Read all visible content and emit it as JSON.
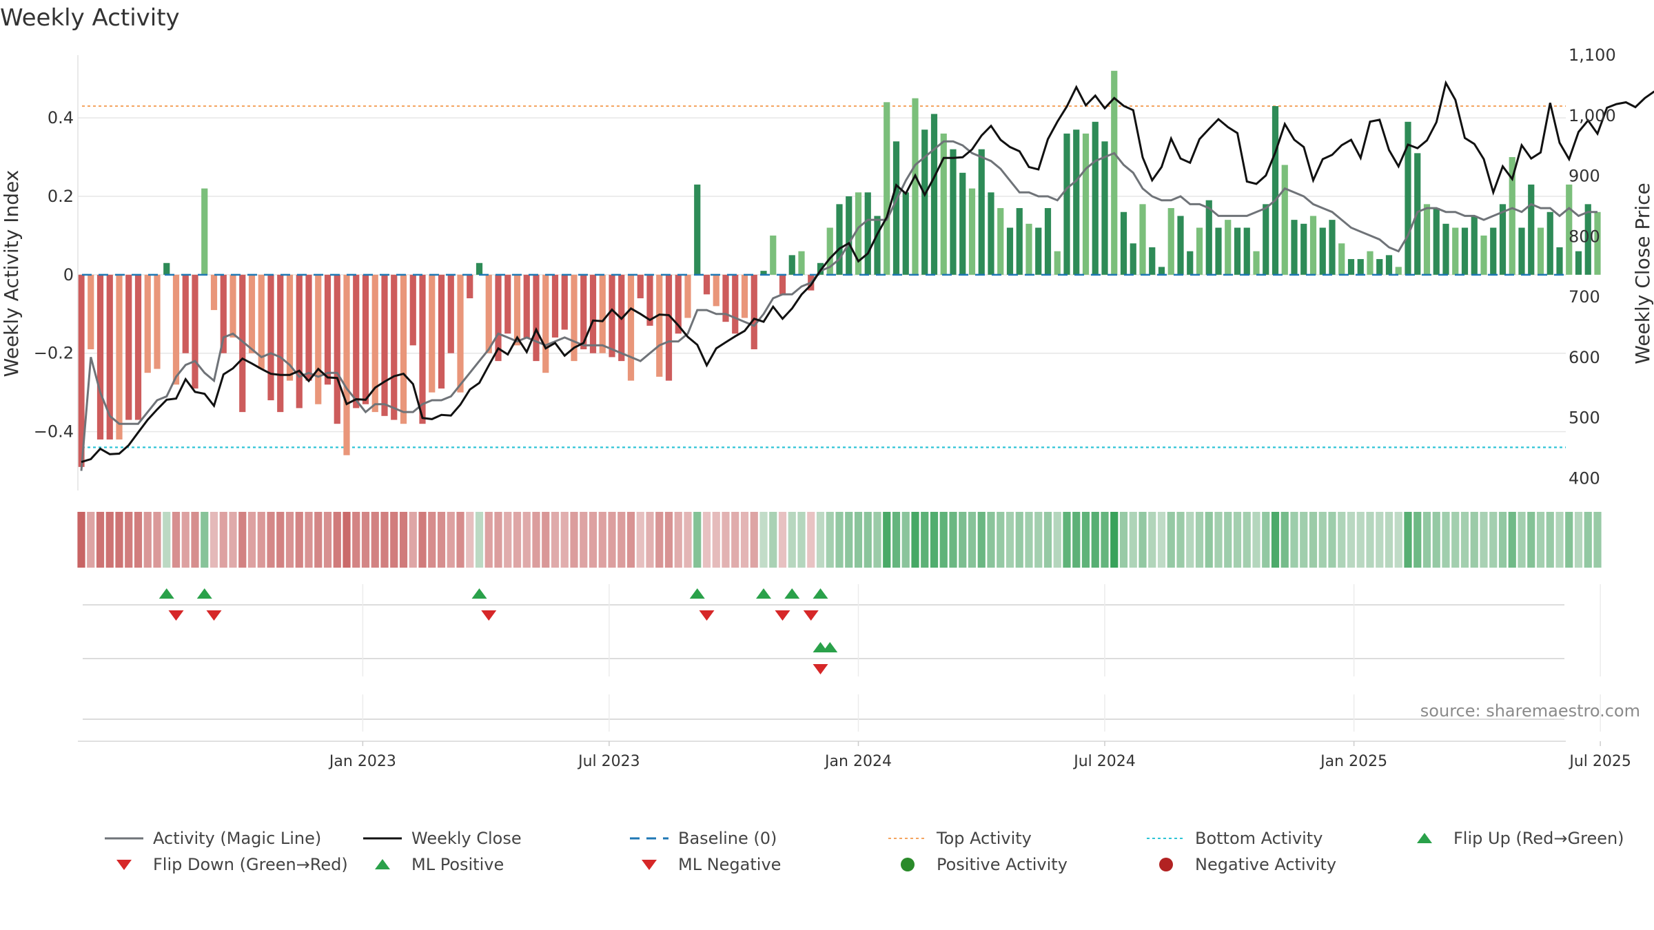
{
  "title": "Weekly Activity",
  "source_note": "source: sharemaestro.com",
  "chart_data": {
    "type": "bar",
    "title": "Weekly Activity",
    "ylabel": "Weekly Activity Index",
    "y2label": "Weekly Close Price",
    "ylim": [
      -0.55,
      0.56
    ],
    "y2lim": [
      380,
      1100
    ],
    "y_ticks": [
      0.4,
      0.2,
      0,
      -0.2,
      -0.4
    ],
    "y_tick_labels": [
      "0.4",
      "0.2",
      "0",
      "−0.2",
      "−0.4"
    ],
    "y2_ticks": [
      1100,
      1000,
      900,
      800,
      700,
      600,
      500,
      400
    ],
    "y2_tick_labels": [
      "1,100",
      "1,000",
      "900",
      "800",
      "700",
      "600",
      "500",
      "400"
    ],
    "x_ticks": [
      29.7,
      55.7,
      82.0,
      108.0,
      134.3,
      160.3
    ],
    "x_tick_labels": [
      "Jan 2023",
      "Jul 2023",
      "Jan 2024",
      "Jul 2024",
      "Jan 2025",
      "Jul 2025"
    ],
    "top_activity": 0.43,
    "bottom_activity": -0.44,
    "baseline": 0,
    "activity": [
      -0.49,
      -0.19,
      -0.42,
      -0.42,
      -0.42,
      -0.37,
      -0.37,
      -0.25,
      -0.24,
      0.03,
      -0.28,
      -0.2,
      -0.29,
      0.22,
      -0.09,
      -0.2,
      -0.16,
      -0.35,
      -0.2,
      -0.24,
      -0.32,
      -0.35,
      -0.27,
      -0.34,
      -0.27,
      -0.33,
      -0.28,
      -0.38,
      -0.46,
      -0.34,
      -0.33,
      -0.35,
      -0.36,
      -0.37,
      -0.38,
      -0.18,
      -0.38,
      -0.3,
      -0.29,
      -0.2,
      -0.3,
      -0.06,
      0.03,
      -0.2,
      -0.22,
      -0.15,
      -0.18,
      -0.16,
      -0.22,
      -0.25,
      -0.16,
      -0.14,
      -0.22,
      -0.19,
      -0.2,
      -0.2,
      -0.21,
      -0.22,
      -0.27,
      -0.06,
      -0.13,
      -0.26,
      -0.27,
      -0.15,
      -0.11,
      0.23,
      -0.05,
      -0.08,
      -0.12,
      -0.15,
      -0.11,
      -0.19,
      0.01,
      0.1,
      -0.05,
      0.05,
      0.06,
      -0.04,
      0.03,
      0.12,
      0.18,
      0.2,
      0.21,
      0.21,
      0.15,
      0.44,
      0.34,
      0.21,
      0.45,
      0.37,
      0.41,
      0.36,
      0.32,
      0.26,
      0.22,
      0.32,
      0.21,
      0.17,
      0.12,
      0.17,
      0.13,
      0.12,
      0.17,
      0.06,
      0.36,
      0.37,
      0.36,
      0.39,
      0.34,
      0.52,
      0.16,
      0.08,
      0.18,
      0.07,
      0.02,
      0.17,
      0.15,
      0.06,
      0.12,
      0.19,
      0.12,
      0.14,
      0.12,
      0.12,
      0.06,
      0.18,
      0.43,
      0.28,
      0.14,
      0.13,
      0.15,
      0.12,
      0.14,
      0.08,
      0.04,
      0.04,
      0.06,
      0.04,
      0.05,
      0.02,
      0.39,
      0.31,
      0.18,
      0.17,
      0.13,
      0.12,
      0.12,
      0.15,
      0.1,
      0.12,
      0.18,
      0.3,
      0.12,
      0.23,
      0.12,
      0.16,
      0.07,
      0.23,
      0.06,
      0.18,
      0.16
    ],
    "magic_line": [
      -0.5,
      -0.21,
      -0.3,
      -0.36,
      -0.38,
      -0.38,
      -0.38,
      -0.35,
      -0.32,
      -0.31,
      -0.26,
      -0.23,
      -0.22,
      -0.25,
      -0.27,
      -0.16,
      -0.15,
      -0.17,
      -0.19,
      -0.21,
      -0.2,
      -0.21,
      -0.23,
      -0.26,
      -0.25,
      -0.26,
      -0.25,
      -0.25,
      -0.29,
      -0.32,
      -0.35,
      -0.33,
      -0.33,
      -0.34,
      -0.35,
      -0.35,
      -0.33,
      -0.32,
      -0.32,
      -0.31,
      -0.28,
      -0.25,
      -0.22,
      -0.19,
      -0.15,
      -0.16,
      -0.17,
      -0.16,
      -0.17,
      -0.18,
      -0.17,
      -0.16,
      -0.17,
      -0.18,
      -0.18,
      -0.18,
      -0.19,
      -0.2,
      -0.21,
      -0.22,
      -0.2,
      -0.18,
      -0.17,
      -0.17,
      -0.15,
      -0.09,
      -0.09,
      -0.1,
      -0.1,
      -0.11,
      -0.12,
      -0.13,
      -0.1,
      -0.06,
      -0.05,
      -0.05,
      -0.03,
      -0.02,
      0.01,
      0.02,
      0.04,
      0.08,
      0.12,
      0.14,
      0.14,
      0.14,
      0.19,
      0.24,
      0.28,
      0.3,
      0.32,
      0.34,
      0.34,
      0.33,
      0.31,
      0.3,
      0.29,
      0.27,
      0.24,
      0.21,
      0.21,
      0.2,
      0.2,
      0.19,
      0.22,
      0.24,
      0.27,
      0.29,
      0.3,
      0.31,
      0.28,
      0.26,
      0.22,
      0.2,
      0.19,
      0.19,
      0.2,
      0.18,
      0.18,
      0.17,
      0.15,
      0.15,
      0.15,
      0.15,
      0.16,
      0.17,
      0.19,
      0.22,
      0.21,
      0.2,
      0.18,
      0.17,
      0.16,
      0.14,
      0.12,
      0.11,
      0.1,
      0.09,
      0.07,
      0.06,
      0.1,
      0.16,
      0.17,
      0.17,
      0.16,
      0.16,
      0.15,
      0.15,
      0.14,
      0.15,
      0.16,
      0.17,
      0.16,
      0.18,
      0.17,
      0.17,
      0.15,
      0.17,
      0.15,
      0.16,
      0.16
    ],
    "weekly_close": [
      427,
      432,
      449,
      440,
      441,
      455,
      476,
      497,
      514,
      530,
      532,
      564,
      543,
      540,
      520,
      572,
      582,
      598,
      590,
      581,
      573,
      571,
      571,
      578,
      561,
      581,
      567,
      566,
      523,
      531,
      530,
      550,
      560,
      569,
      573,
      556,
      500,
      498,
      505,
      504,
      522,
      547,
      558,
      587,
      615,
      605,
      633,
      609,
      646,
      615,
      624,
      603,
      616,
      624,
      661,
      660,
      679,
      664,
      681,
      672,
      662,
      671,
      670,
      653,
      634,
      621,
      587,
      615,
      625,
      635,
      644,
      664,
      659,
      684,
      664,
      681,
      704,
      720,
      744,
      764,
      780,
      789,
      759,
      772,
      804,
      832,
      885,
      871,
      901,
      869,
      898,
      930,
      930,
      931,
      944,
      967,
      983,
      960,
      948,
      941,
      915,
      911,
      961,
      990,
      1015,
      1047,
      1017,
      1033,
      1012,
      1029,
      1016,
      1009,
      931,
      893,
      915,
      962,
      929,
      922,
      961,
      978,
      994,
      981,
      971,
      891,
      887,
      901,
      939,
      986,
      960,
      948,
      893,
      928,
      935,
      951,
      960,
      930,
      990,
      993,
      943,
      916,
      952,
      946,
      959,
      989,
      1054,
      1026,
      963,
      953,
      928,
      873,
      916,
      895,
      951,
      929,
      939,
      1021,
      955,
      928,
      973,
      992,
      970,
      1013,
      1019,
      1022,
      1014,
      1029,
      1040
    ]
  },
  "legend": [
    {
      "label": "Activity (Magic Line)",
      "symbol": "grey-line"
    },
    {
      "label": "Weekly Close",
      "symbol": "black-line"
    },
    {
      "label": "Baseline (0)",
      "symbol": "blue-dashed-line"
    },
    {
      "label": "Top Activity",
      "symbol": "orange-dotted-line"
    },
    {
      "label": "Bottom Activity",
      "symbol": "cyan-dotted-line"
    },
    {
      "label": "Flip Up (Red→Green)",
      "symbol": "green-up-triangle"
    },
    {
      "label": "Flip Down (Green→Red)",
      "symbol": "red-down-triangle"
    },
    {
      "label": "ML Positive",
      "symbol": "green-up-triangle"
    },
    {
      "label": "ML Negative",
      "symbol": "red-down-triangle"
    },
    {
      "label": "Positive Activity",
      "symbol": "green-circle"
    },
    {
      "label": "Negative Activity",
      "symbol": "red-circle"
    }
  ],
  "colors": {
    "pos_dark": "#2e8b57",
    "pos_light": "#7bbf7b",
    "neg_dark": "#cd5c5c",
    "neg_light": "#e9967a",
    "magic_line": "#6f7378",
    "close_line": "#111111",
    "baseline": "#1f77b4",
    "top_line": "#f4a460",
    "bottom_line": "#2ec4d6",
    "marker_up": "#2aa14a",
    "marker_down": "#d62728",
    "grid": "#e6e6e6",
    "axis_text": "#333333"
  }
}
